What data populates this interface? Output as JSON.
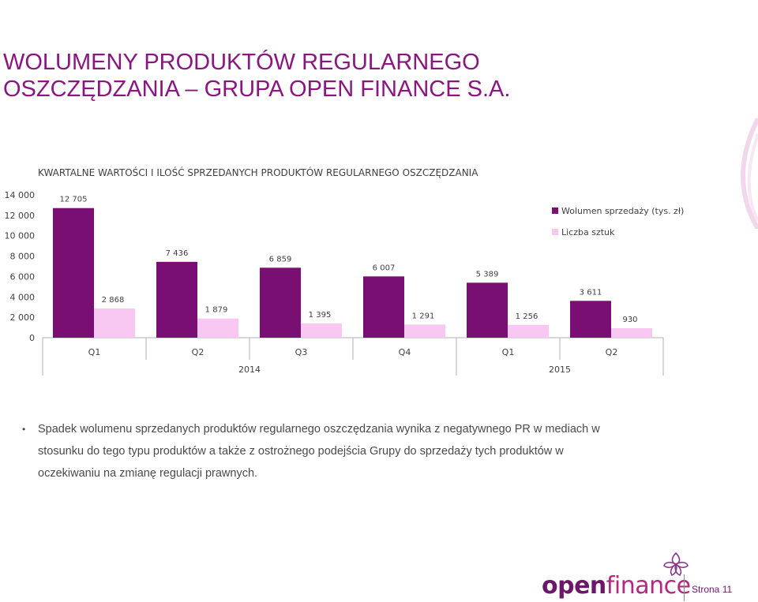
{
  "slide": {
    "title_line1": "WOLUMENY PRODUKTÓW REGULARNEGO",
    "title_line2": "OSZCZĘDZANIA – GRUPA OPEN FINANCE S.A."
  },
  "chart_data": {
    "type": "bar",
    "title": "KWARTALNE WARTOŚCI I ILOŚĆ SPRZEDANYCH PRODUKTÓW REGULARNEGO OSZCZĘDZANIA",
    "categories": [
      "Q1",
      "Q2",
      "Q3",
      "Q4",
      "Q1",
      "Q2"
    ],
    "groups": [
      {
        "label": "2014",
        "categories": [
          "Q1",
          "Q2",
          "Q3",
          "Q4"
        ]
      },
      {
        "label": "2015",
        "categories": [
          "Q1",
          "Q2"
        ]
      }
    ],
    "series": [
      {
        "name": "Wolumen sprzedaży (tys. zł)",
        "color": "#7a0f73",
        "values": [
          12705,
          7436,
          6859,
          6007,
          5389,
          3611
        ],
        "labels": [
          "12 705",
          "7 436",
          "6 859",
          "6 007",
          "5 389",
          "3 611"
        ]
      },
      {
        "name": "Liczba sztuk",
        "color": "#f8c8f2",
        "values": [
          2868,
          1879,
          1395,
          1291,
          1256,
          930
        ],
        "labels": [
          "2 868",
          "1 879",
          "1 395",
          "1 291",
          "1 256",
          "930"
        ]
      }
    ],
    "yticks": [
      0,
      2000,
      4000,
      6000,
      8000,
      10000,
      12000,
      14000
    ],
    "ytick_labels": [
      "0",
      "2 000",
      "4 000",
      "6 000",
      "8 000",
      "10 000",
      "12 000",
      "14 000"
    ],
    "ylim": [
      0,
      14000
    ],
    "grid": false,
    "legend_position": "top-right"
  },
  "bullets": [
    {
      "text": "Spadek wolumenu sprzedanych produktów regularnego oszczędzania wynika z negatywnego PR w mediach w stosunku do tego typu produktów a także z ostrożnego podejścia Grupy do sprzedaży tych produktów w oczekiwaniu na zmianę regulacji prawnych."
    }
  ],
  "footer": {
    "logo_open": "open",
    "logo_finance": "finance",
    "page_label": "Strona 11"
  }
}
